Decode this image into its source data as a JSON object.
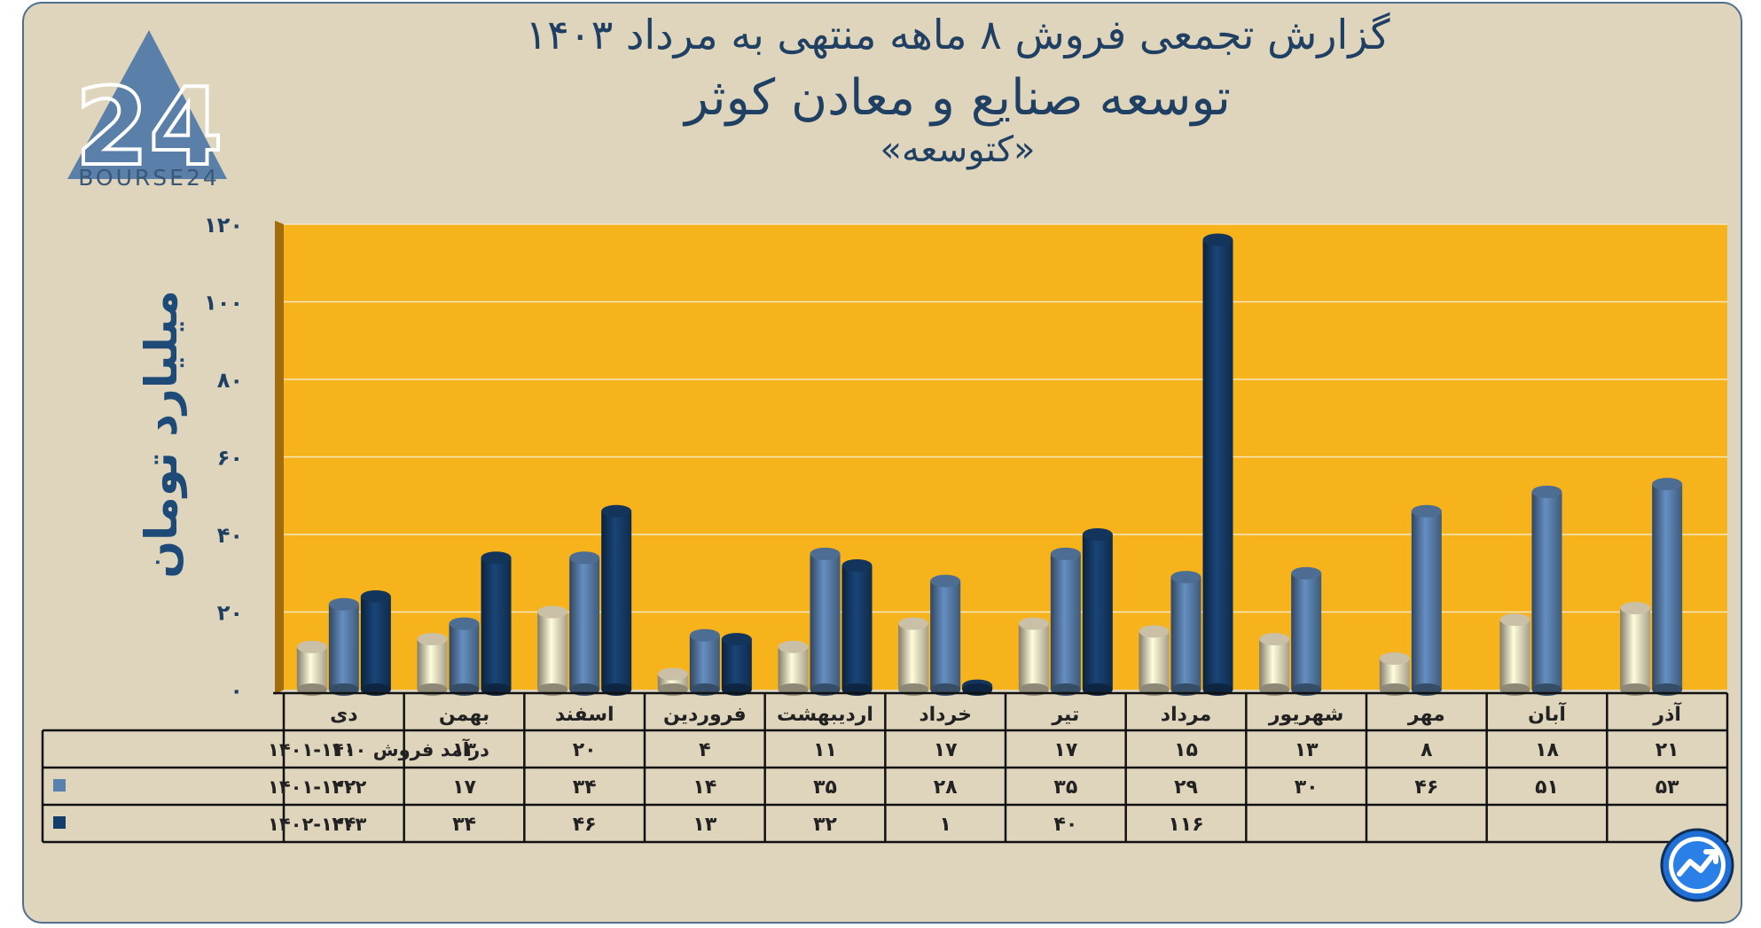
{
  "title": "گزارش تجمعی فروش ۸ ماهه منتهی به مرداد ۱۴۰۳",
  "subtitle": "توسعه صنایع و معادن کوثر",
  "ticker": "«کتوسعه»",
  "logo": {
    "text": "BOURSE24",
    "mark": "24",
    "icon": "triangle-24-logo-icon"
  },
  "badge_icon": "trend-arrow-icon",
  "colors": {
    "background": "#dfd5bd",
    "plot": "#f6b31b",
    "series1": "#ece2c4",
    "series2": "#5a80ad",
    "series3": "#163e6b",
    "text": "#1f3f63"
  },
  "chart_data": {
    "type": "bar",
    "title": "گزارش تجمعی فروش ۸ ماهه منتهی به مرداد ۱۴۰۳",
    "ylabel": "میلیارد تومان",
    "ylim": [
      0,
      120
    ],
    "yticks": [
      "۰",
      "۲۰",
      "۴۰",
      "۶۰",
      "۸۰",
      "۱۰۰",
      "۱۲۰"
    ],
    "grid": true,
    "categories": [
      "آذر",
      "آبان",
      "مهر",
      "شهریور",
      "مرداد",
      "تیر",
      "خرداد",
      "اردیبهشت",
      "فروردین",
      "اسفند",
      "بهمن",
      "دی"
    ],
    "series": [
      {
        "name": "درآمد فروش ۱۴۰۰-۱۴۰۱",
        "values": [
          21,
          18,
          8,
          13,
          15,
          17,
          17,
          11,
          4,
          20,
          13,
          11
        ],
        "labels": [
          "۲۱",
          "۱۸",
          "۸",
          "۱۳",
          "۱۵",
          "۱۷",
          "۱۷",
          "۱۱",
          "۴",
          "۲۰",
          "۱۳",
          "۱۱"
        ]
      },
      {
        "name": "۱۴۰۱-۱۴۰۲",
        "values": [
          53,
          51,
          46,
          30,
          29,
          35,
          28,
          35,
          14,
          34,
          17,
          22
        ],
        "labels": [
          "۵۳",
          "۵۱",
          "۴۶",
          "۳۰",
          "۲۹",
          "۳۵",
          "۲۸",
          "۳۵",
          "۱۴",
          "۳۴",
          "۱۷",
          "۲۲"
        ]
      },
      {
        "name": "۱۴۰۲-۱۴۰۳",
        "values": [
          null,
          null,
          null,
          null,
          116,
          40,
          1,
          32,
          13,
          46,
          34,
          24
        ],
        "labels": [
          "",
          "",
          "",
          "",
          "۱۱۶",
          "۴۰",
          "۱",
          "۳۲",
          "۱۳",
          "۴۶",
          "۳۴",
          "۲۴"
        ]
      }
    ]
  }
}
